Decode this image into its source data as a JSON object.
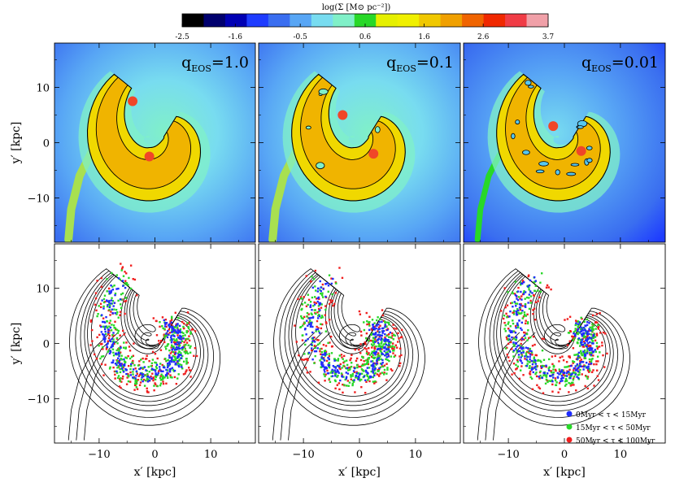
{
  "colorbar": {
    "label": "log(Σ [M⊙ pc⁻²])",
    "colors": [
      "#000000",
      "#00006e",
      "#0000b4",
      "#1e3cff",
      "#3a6ef0",
      "#58a6f5",
      "#78dcf0",
      "#80f0c8",
      "#28d828",
      "#e6f000",
      "#f0f000",
      "#f0c800",
      "#f0a000",
      "#f06400",
      "#f02800",
      "#f03c46",
      "#f0a0a8"
    ],
    "tick_labels": [
      "-2.5",
      "-1.6",
      "-0.5",
      "0.6",
      "1.6",
      "2.6",
      "3.7"
    ],
    "tick_values": [
      -2.5,
      -1.6,
      -0.5,
      0.6,
      1.6,
      2.6,
      3.7
    ],
    "range": [
      -2.5,
      3.7
    ]
  },
  "panels": [
    {
      "label": "q",
      "subscript": "EOS",
      "value": "=1.0"
    },
    {
      "label": "q",
      "subscript": "EOS",
      "value": "=0.1"
    },
    {
      "label": "q",
      "subscript": "EOS",
      "value": "=0.01"
    }
  ],
  "axes": {
    "xlabel": "x′ [kpc]",
    "ylabel": "y′ [kpc]",
    "xlim": [
      -18,
      18
    ],
    "ylim": [
      -18,
      18
    ],
    "xticks": [
      -10,
      0,
      10
    ],
    "yticks": [
      -10,
      0,
      10
    ],
    "xtick_labels": [
      "−10",
      "0",
      "10"
    ],
    "ytick_labels": [
      "−10",
      "0",
      "10"
    ]
  },
  "legend": {
    "placement": "bottom-right of lower-right panel",
    "entries": [
      {
        "label": "0Myr < τ < 15Myr",
        "color": "#1e2cff"
      },
      {
        "label": "15Myr < τ < 50Myr",
        "color": "#28d828"
      },
      {
        "label": "50Myr < τ < 100Myr",
        "color": "#f01e1e"
      }
    ]
  },
  "chart_data": [
    {
      "type": "heatmap",
      "panel": "top-left",
      "title": "qEOS=1.0",
      "xlabel": "",
      "ylabel": "y′ [kpc]",
      "xlim": [
        -18,
        18
      ],
      "ylim": [
        -18,
        18
      ]
    },
    {
      "type": "heatmap",
      "panel": "top-middle",
      "title": "qEOS=0.1",
      "xlabel": "",
      "ylabel": "",
      "xlim": [
        -18,
        18
      ],
      "ylim": [
        -18,
        18
      ]
    },
    {
      "type": "heatmap",
      "panel": "top-right",
      "title": "qEOS=0.01",
      "xlabel": "",
      "ylabel": "",
      "xlim": [
        -18,
        18
      ],
      "ylim": [
        -18,
        18
      ]
    },
    {
      "type": "scatter",
      "panel": "bottom-left",
      "xlabel": "x′ [kpc]",
      "ylabel": "y′ [kpc]",
      "xlim": [
        -18,
        18
      ],
      "ylim": [
        -18,
        18
      ]
    },
    {
      "type": "scatter",
      "panel": "bottom-middle",
      "xlabel": "x′ [kpc]",
      "ylabel": "",
      "xlim": [
        -18,
        18
      ],
      "ylim": [
        -18,
        18
      ]
    },
    {
      "type": "scatter",
      "panel": "bottom-right",
      "xlabel": "x′ [kpc]",
      "ylabel": "",
      "xlim": [
        -18,
        18
      ],
      "ylim": [
        -18,
        18
      ],
      "series": [
        {
          "name": "0Myr < τ < 15Myr"
        },
        {
          "name": "15Myr < τ < 50Myr"
        },
        {
          "name": "50Myr < τ < 100Myr"
        }
      ]
    }
  ]
}
